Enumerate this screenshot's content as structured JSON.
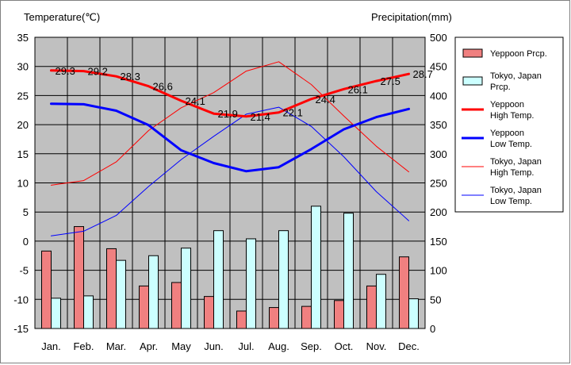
{
  "chart_data": {
    "type": "bar+line",
    "categories": [
      "Jan.",
      "Feb.",
      "Mar.",
      "Apr.",
      "May",
      "Jun.",
      "Jul.",
      "Aug.",
      "Sep.",
      "Oct.",
      "Nov.",
      "Dec."
    ],
    "y_left": {
      "label": "Temperature(℃)",
      "range": [
        -15,
        35
      ],
      "ticks": [
        35,
        30,
        25,
        20,
        15,
        10,
        5,
        0,
        -5,
        -10,
        -15
      ]
    },
    "y_right": {
      "label": "Precipitation(mm)",
      "range": [
        0,
        500
      ],
      "ticks": [
        500,
        450,
        400,
        350,
        300,
        250,
        200,
        150,
        100,
        50,
        0
      ]
    },
    "grid": true,
    "legend_position": "right",
    "series": [
      {
        "name": "Yeppoon Prcp.",
        "kind": "bar",
        "axis": "right",
        "color": "#f08080",
        "values": [
          133,
          175,
          137,
          73,
          79,
          55,
          30,
          36,
          38,
          48,
          73,
          123
        ]
      },
      {
        "name": "Tokyo, Japan Prcp.",
        "kind": "bar",
        "axis": "right",
        "color": "#ccffff",
        "values": [
          52,
          56,
          117,
          125,
          138,
          168,
          154,
          168,
          210,
          198,
          93,
          51
        ]
      },
      {
        "name": "Yeppoon High Temp.",
        "kind": "line",
        "axis": "left",
        "color": "#ff0000",
        "values": [
          29.3,
          29.2,
          28.3,
          26.6,
          24.1,
          21.9,
          21.4,
          22.1,
          24.4,
          26.1,
          27.5,
          28.7
        ],
        "data_labels": [
          "29.3",
          "29.2",
          "28.3",
          "26.6",
          "24.1",
          "21.9",
          "21.4",
          "22.1",
          "24.4",
          "26.1",
          "27.5",
          "28.7"
        ]
      },
      {
        "name": "Yeppoon Low Temp.",
        "kind": "line",
        "axis": "left",
        "color": "#0000ff",
        "values": [
          23.6,
          23.5,
          22.4,
          19.9,
          15.6,
          13.4,
          12.0,
          12.7,
          15.8,
          19.2,
          21.3,
          22.7
        ]
      },
      {
        "name": "Tokyo, Japan High Temp.",
        "kind": "line",
        "axis": "left",
        "color": "#ff0000",
        "values": [
          9.6,
          10.4,
          13.6,
          19.0,
          22.9,
          25.5,
          29.2,
          30.8,
          26.9,
          21.5,
          16.3,
          11.9
        ]
      },
      {
        "name": "Tokyo, Japan Low Temp.",
        "kind": "line",
        "axis": "left",
        "color": "#0000ff",
        "values": [
          0.9,
          1.7,
          4.4,
          9.4,
          14.0,
          18.0,
          21.8,
          23.0,
          19.7,
          14.5,
          8.5,
          3.5
        ]
      }
    ],
    "legend": [
      {
        "label_lines": [
          "Yeppoon Prcp."
        ],
        "kind": "bar",
        "color": "#f08080"
      },
      {
        "label_lines": [
          "Tokyo, Japan",
          "Prcp."
        ],
        "kind": "bar",
        "color": "#ccffff"
      },
      {
        "label_lines": [
          "Yeppoon",
          "High Temp."
        ],
        "kind": "thick",
        "color": "#ff0000"
      },
      {
        "label_lines": [
          "Yeppoon",
          "Low Temp."
        ],
        "kind": "thick",
        "color": "#0000ff"
      },
      {
        "label_lines": [
          "Tokyo, Japan",
          "High Temp."
        ],
        "kind": "thin",
        "color": "#ff0000"
      },
      {
        "label_lines": [
          "Tokyo, Japan",
          "Low Temp."
        ],
        "kind": "thin",
        "color": "#0000ff"
      }
    ]
  }
}
